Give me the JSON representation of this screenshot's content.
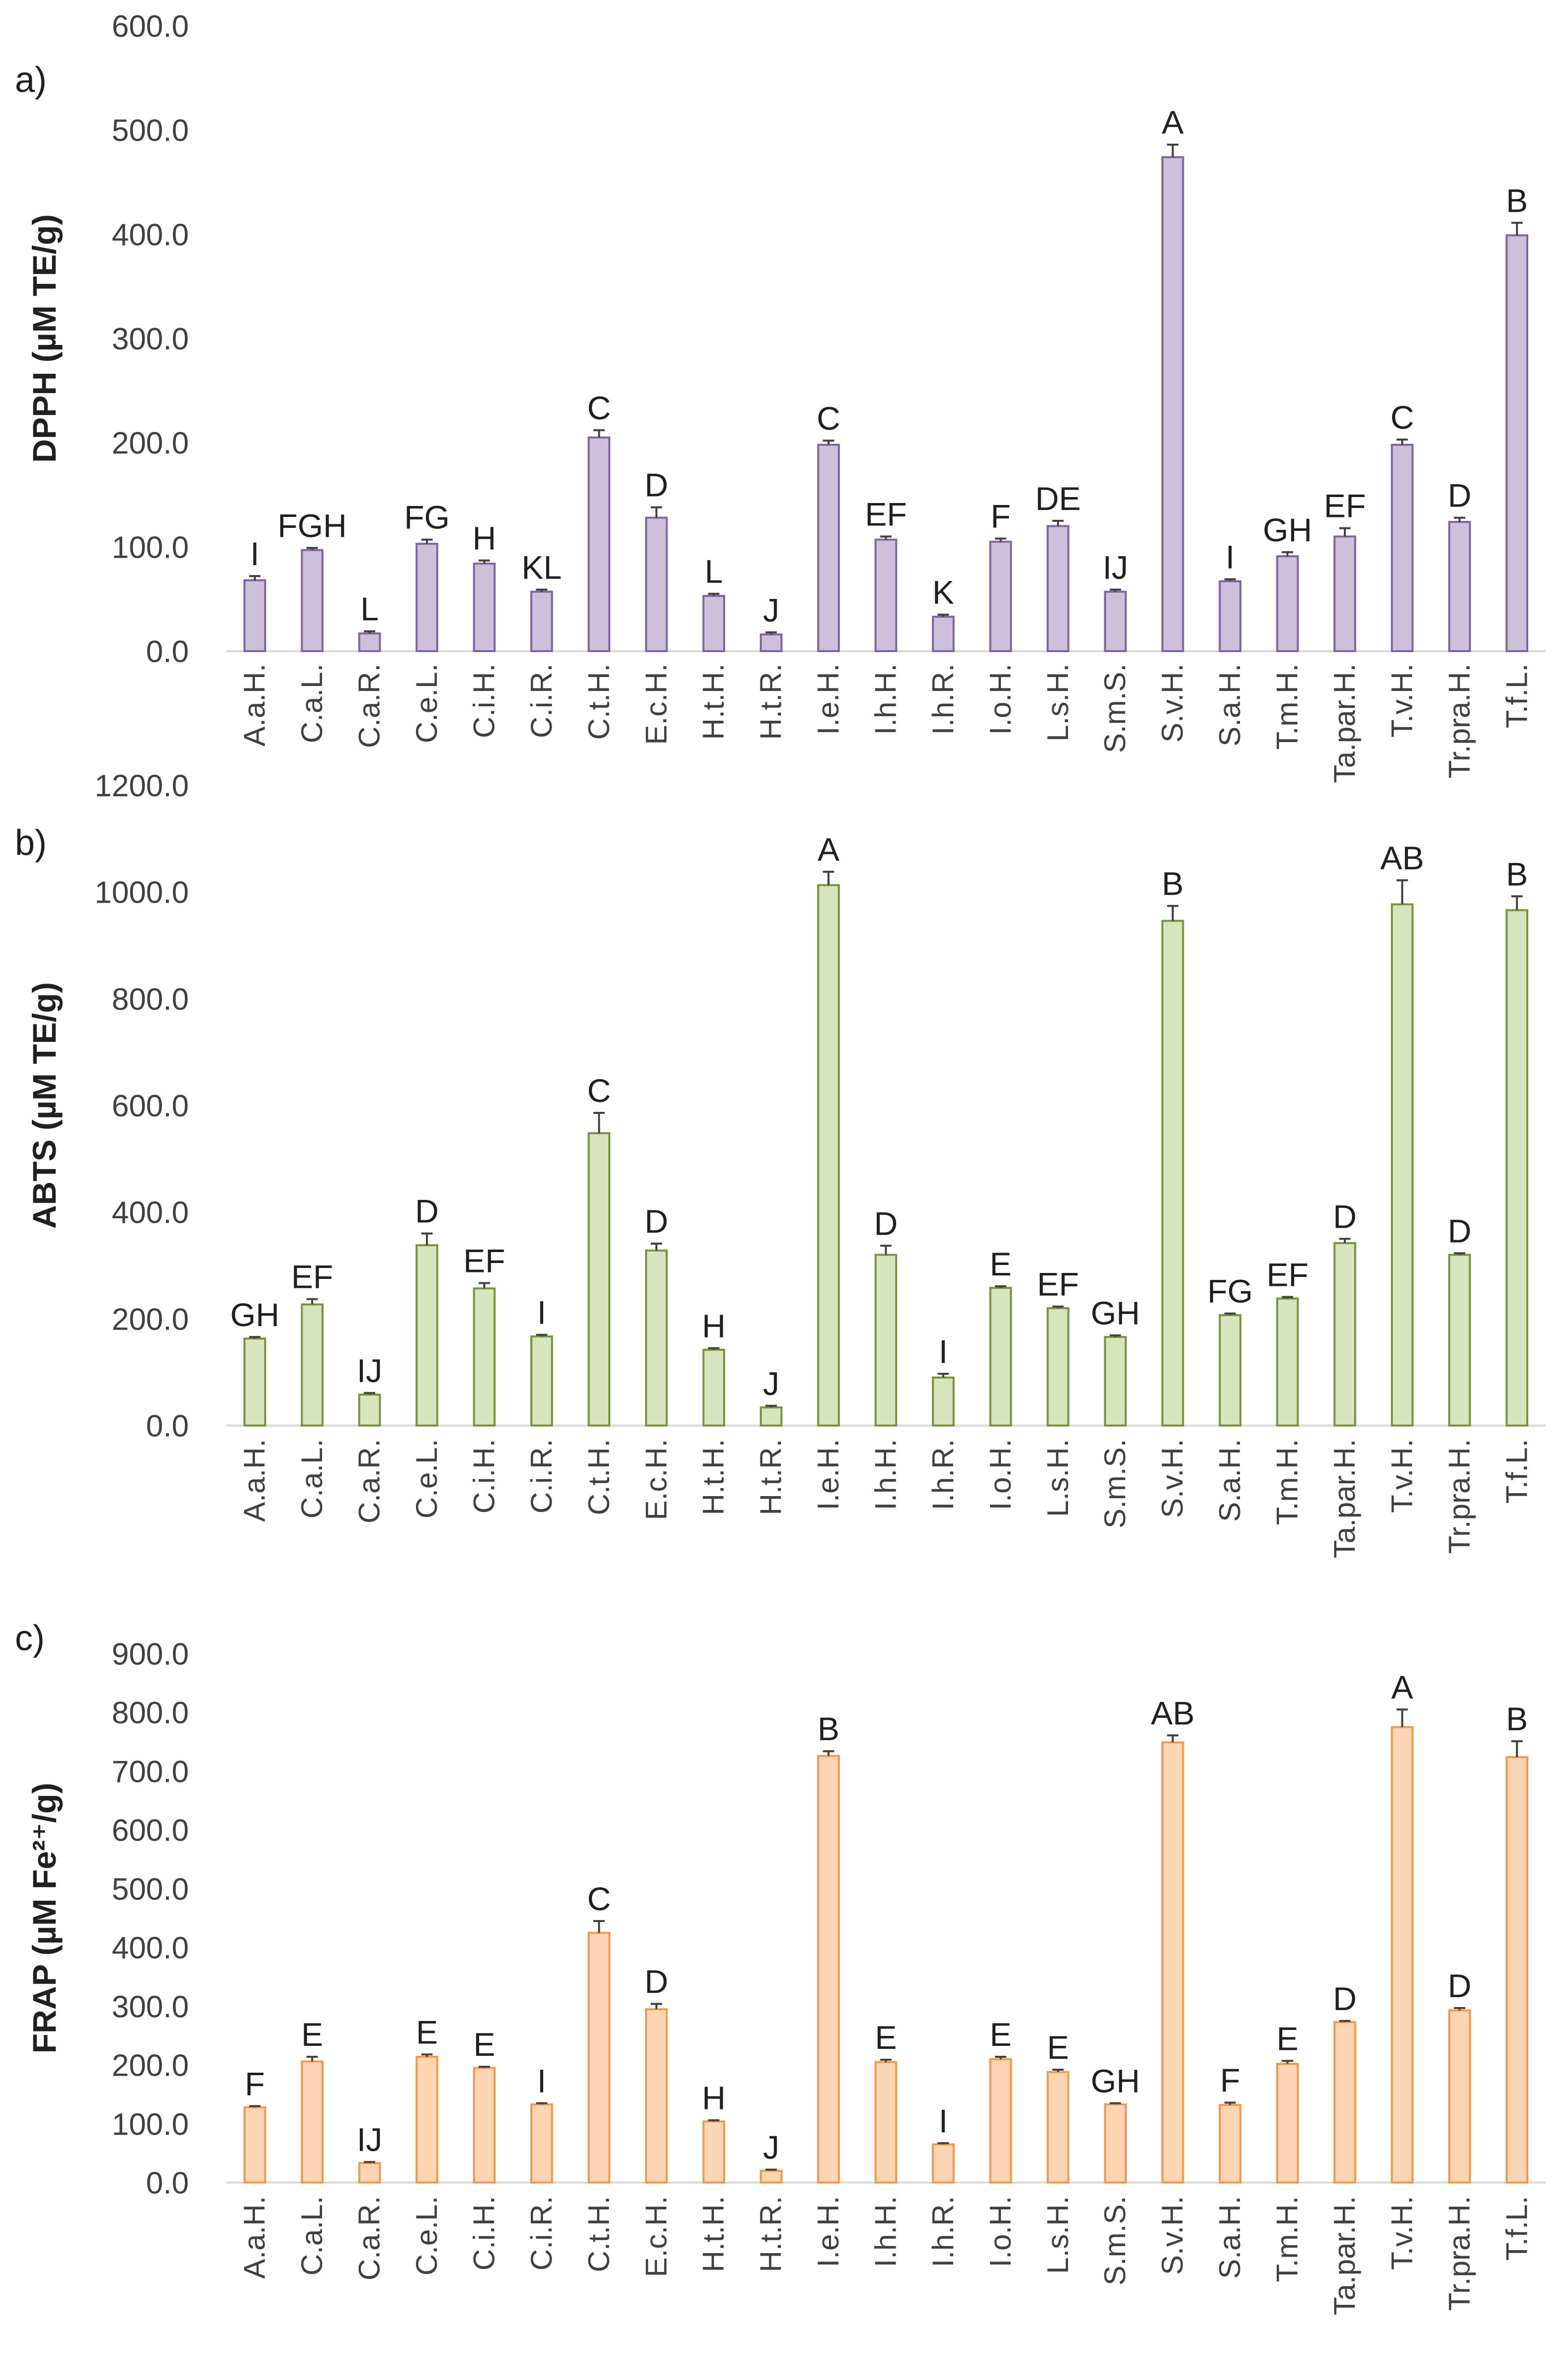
{
  "chart_data": [
    {
      "type": "bar",
      "panel_label": "a)",
      "ylabel": "DPPH (µM TE/g)",
      "ylim": [
        0,
        600
      ],
      "yticks": [
        "0.0",
        "100.0",
        "200.0",
        "300.0",
        "400.0",
        "500.0",
        "600.0"
      ],
      "colors": {
        "fill": "#ccc0da",
        "stroke": "#8064a2"
      },
      "categories": [
        "A.a.H.",
        "C.a.L.",
        "C.a.R.",
        "C.e.L.",
        "C.i.H.",
        "C.i.R.",
        "C.t.H.",
        "E.c.H.",
        "H.t.H.",
        "H.t.R.",
        "I.e.H.",
        "I.h.H.",
        "I.h.R.",
        "I.o.H.",
        "L.s.H.",
        "S.m.S.",
        "S.v.H.",
        "S.a.H.",
        "T.m.H.",
        "Ta.par.H.",
        "T.v.H.",
        "Tr.pra.H.",
        "T.f.L."
      ],
      "values": [
        68,
        97,
        17,
        103,
        84,
        57,
        205,
        128,
        53,
        16,
        198,
        107,
        33,
        105,
        120,
        57,
        474,
        67,
        91,
        110,
        198,
        124,
        399
      ],
      "errors": [
        4,
        2,
        2,
        4,
        3,
        2,
        7,
        10,
        2,
        2,
        4,
        3,
        2,
        3,
        5,
        2,
        12,
        2,
        4,
        8,
        5,
        4,
        12
      ],
      "letters": [
        "I",
        "FGH",
        "L",
        "FG",
        "H",
        "KL",
        "C",
        "D",
        "L",
        "J",
        "C",
        "EF",
        "K",
        "F",
        "DE",
        "IJ",
        "A",
        "I",
        "GH",
        "EF",
        "C",
        "D",
        "B"
      ]
    },
    {
      "type": "bar",
      "panel_label": "b)",
      "ylabel": "ABTS (µM TE/g)",
      "ylim": [
        0,
        1200
      ],
      "yticks": [
        "0.0",
        "200.0",
        "400.0",
        "600.0",
        "800.0",
        "1000.0",
        "1200.0"
      ],
      "colors": {
        "fill": "#d7e4bd",
        "stroke": "#77933c"
      },
      "categories": [
        "A.a.H.",
        "C.a.L.",
        "C.a.R.",
        "C.e.L.",
        "C.i.H.",
        "C.i.R.",
        "C.t.H.",
        "E.c.H.",
        "H.t.H.",
        "H.t.R.",
        "I.e.H.",
        "I.h.H.",
        "I.h.R.",
        "I.o.H.",
        "L.s.H.",
        "S.m.S.",
        "S.v.H.",
        "S.a.H.",
        "T.m.H.",
        "Ta.par.H.",
        "T.v.H.",
        "Tr.pra.H.",
        "T.f.L."
      ],
      "values": [
        163,
        227,
        58,
        338,
        257,
        167,
        548,
        328,
        142,
        34,
        1013,
        320,
        90,
        258,
        220,
        166,
        946,
        207,
        238,
        342,
        977,
        320,
        966
      ],
      "errors": [
        3,
        10,
        3,
        22,
        10,
        3,
        38,
        13,
        3,
        3,
        25,
        17,
        7,
        3,
        3,
        3,
        28,
        3,
        3,
        8,
        45,
        3,
        26
      ],
      "letters": [
        "GH",
        "EF",
        "IJ",
        "D",
        "EF",
        "I",
        "C",
        "D",
        "H",
        "J",
        "A",
        "D",
        "I",
        "E",
        "EF",
        "GH",
        "B",
        "FG",
        "EF",
        "D",
        "AB",
        "D",
        "B"
      ]
    },
    {
      "type": "bar",
      "panel_label": "c)",
      "ylabel": "FRAP (µM Fe²⁺/g)",
      "ylim": [
        0,
        900
      ],
      "yticks": [
        "0.0",
        "100.0",
        "200.0",
        "300.0",
        "400.0",
        "500.0",
        "600.0",
        "700.0",
        "800.0",
        "900.0"
      ],
      "colors": {
        "fill": "#fcd5b5",
        "stroke": "#f79646"
      },
      "categories": [
        "A.a.H.",
        "C.a.L.",
        "C.a.R.",
        "C.e.L.",
        "C.i.H.",
        "C.i.R.",
        "C.t.H.",
        "E.c.H.",
        "H.t.H.",
        "H.t.R.",
        "I.e.H.",
        "I.h.H.",
        "I.h.R.",
        "I.o.H.",
        "L.s.H.",
        "S.m.S.",
        "S.v.H.",
        "S.a.H.",
        "T.m.H.",
        "Ta.par.H.",
        "T.v.H.",
        "Tr.pra.H.",
        "T.f.L."
      ],
      "values": [
        128,
        206,
        33,
        214,
        195,
        133,
        425,
        295,
        104,
        20,
        726,
        205,
        65,
        210,
        188,
        133,
        749,
        132,
        202,
        273,
        775,
        293,
        724
      ],
      "errors": [
        2,
        8,
        2,
        4,
        2,
        2,
        20,
        9,
        2,
        2,
        8,
        4,
        2,
        4,
        4,
        2,
        12,
        4,
        5,
        2,
        30,
        4,
        27
      ],
      "letters": [
        "F",
        "E",
        "IJ",
        "E",
        "E",
        "I",
        "C",
        "D",
        "H",
        "J",
        "B",
        "E",
        "I",
        "E",
        "E",
        "GH",
        "AB",
        "F",
        "E",
        "D",
        "A",
        "D",
        "B"
      ]
    }
  ]
}
